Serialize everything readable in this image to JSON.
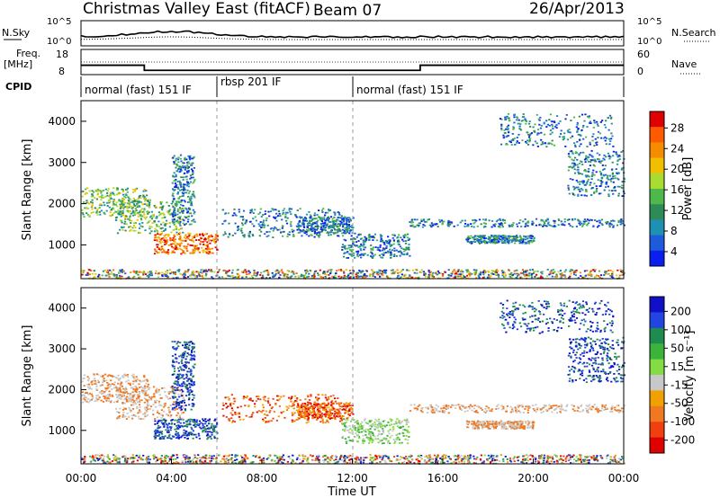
{
  "header": {
    "radar": "Christmas Valley East (fitACF)",
    "beam": "Beam 07",
    "date": "26/Apr/2013"
  },
  "top_panel": {
    "left_label": "N.Sky",
    "left_ticks": [
      "10^5",
      "10^0"
    ],
    "right_ticks": [
      "10^5",
      "10^0"
    ],
    "right_label": "N.Search"
  },
  "freq_panel": {
    "left_label_1": "Freq.",
    "left_label_2": "[MHz]",
    "left_ticks": [
      "18",
      "8"
    ],
    "right_ticks": [
      "60",
      "0"
    ],
    "right_label": "Nave",
    "freq_step_mhz": [
      [
        0,
        13.5
      ],
      [
        2.8,
        10.5
      ],
      [
        15.0,
        13.5
      ],
      [
        24,
        13.5
      ]
    ]
  },
  "cpid": {
    "label": "CPID",
    "segments": [
      {
        "start_h": 0,
        "end_h": 6,
        "text": "normal (fast) 151 IF"
      },
      {
        "start_h": 6,
        "end_h": 12,
        "text": "rbsp 201 IF"
      },
      {
        "start_h": 12,
        "end_h": 24,
        "text": "normal (fast) 151 IF"
      }
    ]
  },
  "chart_data": [
    {
      "type": "heatmap",
      "panel": "power",
      "ylabel": "Slant Range [km]",
      "xlabel": "",
      "xlim": [
        0,
        24
      ],
      "ylim": [
        180,
        4500
      ],
      "yticks": [
        "1000",
        "2000",
        "3000",
        "4000"
      ],
      "colorbar": {
        "label": "Power [dB]",
        "ticks": [
          "28",
          "24",
          "20",
          "16",
          "12",
          "8",
          "4"
        ],
        "colors": [
          "#e00000",
          "#ff5a00",
          "#f58c00",
          "#f0c000",
          "#a8dc30",
          "#4fb84a",
          "#2e8b57",
          "#1e90b4",
          "#1e5adc",
          "#0a1ef0"
        ]
      }
    },
    {
      "type": "heatmap",
      "panel": "velocity",
      "ylabel": "Slant Range [km]",
      "xlabel": "Time UT",
      "xlim": [
        0,
        24
      ],
      "ylim": [
        180,
        4500
      ],
      "yticks": [
        "1000",
        "2000",
        "3000",
        "4000"
      ],
      "xticks": [
        "00:00",
        "04:00",
        "08:00",
        "12:00",
        "16:00",
        "20:00",
        "00:00"
      ],
      "colorbar": {
        "label": "Velocity [m s⁻¹]",
        "ticks": [
          "200",
          "100",
          "50",
          "15",
          "-15",
          "-50",
          "-100",
          "-200"
        ],
        "colors": [
          "#1010c8",
          "#2244e0",
          "#1e8c50",
          "#3cb43c",
          "#84dc44",
          "#c8c8c8",
          "#f0a000",
          "#f07820",
          "#f04010",
          "#e00000"
        ]
      }
    }
  ]
}
